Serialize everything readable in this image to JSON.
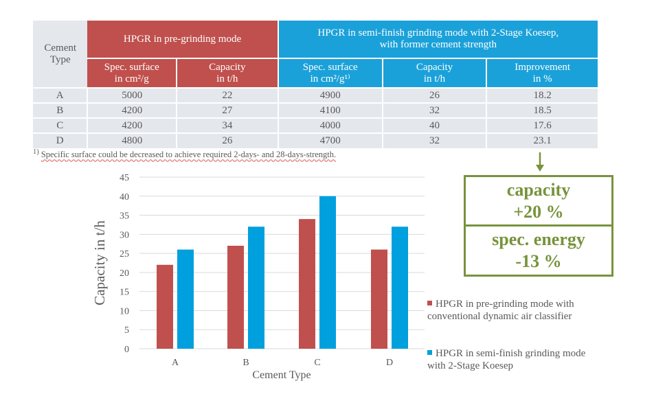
{
  "table": {
    "col_header": "Cement Type",
    "group1": "HPGR in pre-grinding mode",
    "group2_line1": "HPGR in semi-finish grinding mode with 2-Stage Koesep,",
    "group2_line2": "with former cement strength",
    "sub": [
      {
        "l1": "Spec. surface",
        "l2": "in cm²/g"
      },
      {
        "l1": "Capacity",
        "l2": "in t/h"
      },
      {
        "l1": "Spec. surface",
        "l2": "in cm²/g¹⁾"
      },
      {
        "l1": "Capacity",
        "l2": "in t/h"
      },
      {
        "l1": "Improvement",
        "l2": "in %"
      }
    ],
    "rows": [
      [
        "A",
        "5000",
        "22",
        "4900",
        "26",
        "18.2"
      ],
      [
        "B",
        "4200",
        "27",
        "4100",
        "32",
        "18.5"
      ],
      [
        "C",
        "4200",
        "34",
        "4000",
        "40",
        "17.6"
      ],
      [
        "D",
        "4800",
        "26",
        "4700",
        "32",
        "23.1"
      ]
    ]
  },
  "footnote": {
    "mark": "1)",
    "text": "Specific surface could be decreased to achieve required 2-days- and 28-days-strength."
  },
  "callout": {
    "l1": "capacity",
    "l2": "+20 %",
    "l3": "spec. energy",
    "l4": "-13 %",
    "color": "#77933c"
  },
  "chart_data": {
    "type": "bar",
    "categories": [
      "A",
      "B",
      "C",
      "D"
    ],
    "series": [
      {
        "name": "HPGR in pre-grinding mode with conventional dynamic air classifier",
        "values": [
          22,
          27,
          34,
          26
        ],
        "color": "#c0504d"
      },
      {
        "name": "HPGR in semi-finish grinding mode with 2-Stage Koesep",
        "values": [
          26,
          32,
          40,
          32
        ],
        "color": "#00a0de"
      }
    ],
    "legend_lines": [
      [
        "HPGR in pre-grinding mode with",
        "conventional dynamic air classifier"
      ],
      [
        "HPGR in semi-finish grinding mode",
        "with 2-Stage Koesep"
      ]
    ],
    "xlabel": "Cement Type",
    "ylabel": "Capacity in t/h",
    "ylim": [
      0,
      45
    ],
    "yticks": [
      0,
      5,
      10,
      15,
      20,
      25,
      30,
      35,
      40,
      45
    ],
    "grid": true,
    "legend_position": "right"
  }
}
